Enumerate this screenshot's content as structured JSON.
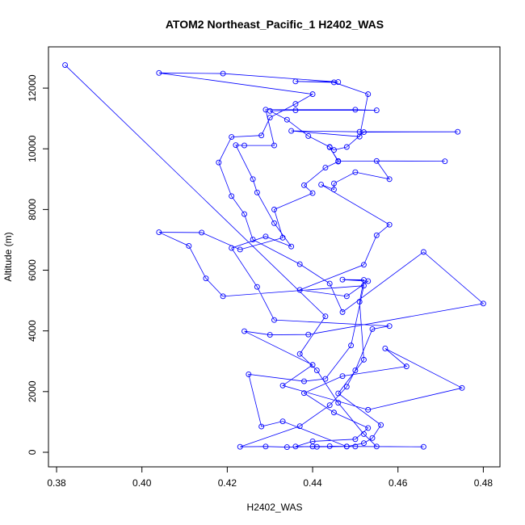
{
  "chart_data": {
    "type": "line",
    "title": "ATOM2 Northeast_Pacific_1 H2402_WAS",
    "xlabel": "H2402_WAS",
    "ylabel": "Altitude (m)",
    "color": "#0000ff",
    "x": [
      0.382,
      0.443,
      0.437,
      0.441,
      0.446,
      0.452,
      0.455,
      0.466,
      0.45,
      0.44,
      0.434,
      0.429,
      0.423,
      0.437,
      0.444,
      0.448,
      0.45,
      0.454,
      0.458,
      0.431,
      0.427,
      0.421,
      0.429,
      0.435,
      0.431,
      0.427,
      0.426,
      0.422,
      0.424,
      0.431,
      0.429,
      0.45,
      0.455,
      0.436,
      0.43,
      0.434,
      0.439,
      0.444,
      0.446,
      0.443,
      0.438,
      0.44,
      0.431,
      0.433,
      0.423,
      0.414,
      0.404,
      0.411,
      0.415,
      0.419,
      0.452,
      0.449,
      0.443,
      0.438,
      0.425,
      0.428,
      0.433,
      0.448,
      0.452,
      0.454,
      0.456,
      0.446,
      0.452,
      0.451,
      0.452,
      0.447,
      0.453,
      0.448,
      0.437,
      0.452,
      0.455,
      0.458,
      0.442,
      0.445,
      0.445,
      0.45,
      0.458,
      0.455,
      0.471,
      0.446,
      0.444,
      0.445,
      0.448,
      0.452,
      0.474,
      0.451,
      0.435,
      0.451,
      0.453,
      0.445,
      0.436,
      0.446,
      0.419,
      0.404,
      0.44,
      0.436,
      0.43,
      0.428,
      0.421,
      0.418,
      0.421,
      0.424,
      0.426,
      0.437,
      0.444,
      0.447,
      0.466,
      0.48,
      0.439,
      0.43,
      0.424,
      0.44,
      0.433,
      0.453,
      0.475,
      0.457,
      0.462,
      0.447,
      0.438,
      0.445,
      0.453,
      0.45,
      0.44,
      0.436,
      0.441,
      0.448,
      0.444
    ],
    "values": [
      12760,
      4480,
      3240,
      2700,
      1630,
      600,
      190,
      180,
      190,
      190,
      170,
      190,
      180,
      860,
      1550,
      2160,
      2700,
      4060,
      4160,
      4360,
      5450,
      6730,
      7110,
      6780,
      7550,
      8560,
      9000,
      10120,
      10110,
      10110,
      11290,
      11290,
      11270,
      11270,
      11250,
      10960,
      10420,
      10060,
      9580,
      9380,
      8800,
      8540,
      8000,
      7070,
      6680,
      7240,
      7250,
      6800,
      5730,
      5140,
      5490,
      3520,
      2420,
      2340,
      2570,
      850,
      1020,
      190,
      300,
      470,
      900,
      1940,
      3050,
      4960,
      5680,
      5690,
      5640,
      5140,
      5350,
      6180,
      7150,
      7500,
      8820,
      8660,
      8860,
      9230,
      9000,
      9600,
      9590,
      9600,
      10050,
      9960,
      10060,
      10550,
      10560,
      10560,
      10590,
      10400,
      11800,
      12190,
      12220,
      12200,
      12480,
      12500,
      11800,
      11480,
      11030,
      10440,
      10390,
      9550,
      8440,
      7850,
      7010,
      6200,
      5560,
      4620,
      6600,
      4900,
      3880,
      3870,
      3990,
      2880,
      2200,
      1400,
      2120,
      3420,
      2830,
      2510,
      1950,
      1310,
      800,
      430,
      360,
      190,
      180,
      190,
      200
    ],
    "xlim": [
      0.3781,
      0.4839
    ],
    "ylim": [
      -480,
      13360
    ],
    "xticks": [
      {
        "value": 0.38,
        "label": "0.38"
      },
      {
        "value": 0.4,
        "label": "0.40"
      },
      {
        "value": 0.42,
        "label": "0.42"
      },
      {
        "value": 0.44,
        "label": "0.44"
      },
      {
        "value": 0.46,
        "label": "0.46"
      },
      {
        "value": 0.48,
        "label": "0.48"
      }
    ],
    "yticks": [
      0,
      2000,
      4000,
      6000,
      8000,
      10000,
      12000
    ]
  }
}
